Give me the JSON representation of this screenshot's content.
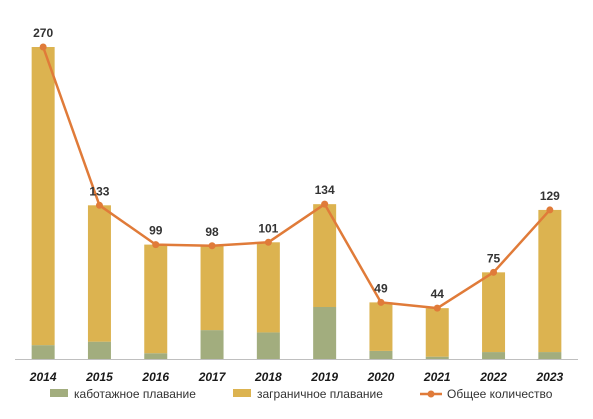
{
  "chart_data": {
    "type": "bar",
    "stacked": true,
    "categories": [
      "2014",
      "2015",
      "2016",
      "2017",
      "2018",
      "2019",
      "2020",
      "2021",
      "2022",
      "2023"
    ],
    "series": [
      {
        "name": "каботажное плавание",
        "type": "bar",
        "color": "#a2ad7e",
        "values": [
          12,
          15,
          5,
          25,
          23,
          45,
          7,
          2,
          6,
          6
        ]
      },
      {
        "name": "заграничное плавание",
        "type": "bar",
        "color": "#dcb350",
        "values": [
          258,
          118,
          94,
          73,
          78,
          89,
          42,
          42,
          69,
          123
        ]
      },
      {
        "name": "Общее количество",
        "type": "line",
        "color": "#e07b39",
        "values": [
          270,
          133,
          99,
          98,
          101,
          134,
          49,
          44,
          75,
          129
        ]
      }
    ],
    "data_labels": [
      "270",
      "133",
      "99",
      "98",
      "101",
      "134",
      "49",
      "44",
      "75",
      "129"
    ],
    "ylim": [
      0,
      270
    ],
    "grid": false,
    "legend_position": "bottom"
  }
}
